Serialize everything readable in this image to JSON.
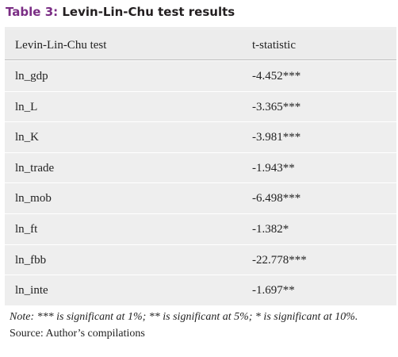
{
  "header": {
    "label": "Table 3:",
    "title": "Levin-Lin-Chu test results"
  },
  "table": {
    "columns": [
      "Levin-Lin-Chu test",
      "t-statistic"
    ],
    "rows": [
      [
        "ln_gdp",
        "-4.452***"
      ],
      [
        "ln_L",
        "-3.365***"
      ],
      [
        "ln_K",
        "-3.981***"
      ],
      [
        "ln_trade",
        "-1.943**"
      ],
      [
        "ln_mob",
        "-6.498***"
      ],
      [
        "ln_ft",
        "-1.382*"
      ],
      [
        "ln_fbb",
        "-22.778***"
      ],
      [
        "ln_inte",
        "-1.697**"
      ]
    ]
  },
  "footer": {
    "note": "Note: *** is significant at 1%; ** is significant at 5%; * is significant at 10%.",
    "source": "Source: Author’s compilations"
  }
}
